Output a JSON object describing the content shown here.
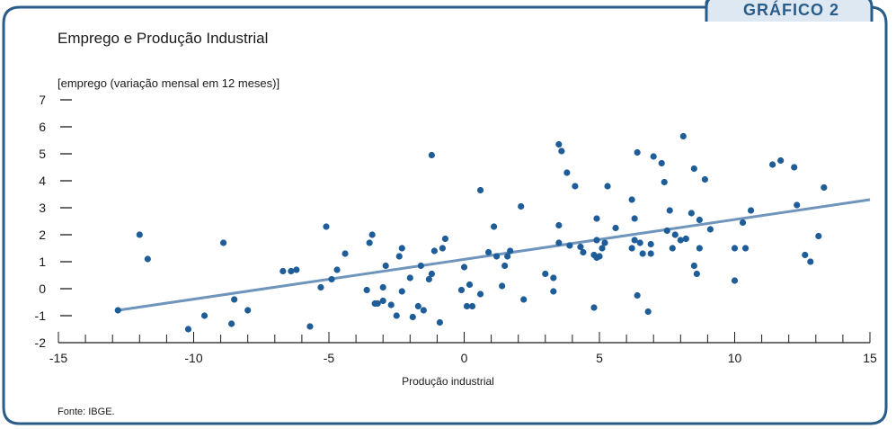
{
  "badge": "GRÁFICO 2",
  "title": "Emprego e Produção Industrial",
  "source": "Fonte: IBGE.",
  "colors": {
    "frame": "#2a5c8a",
    "points": "#1f5d99",
    "trend": "#6f95bd",
    "badge_bg": "#dde8f2"
  },
  "chart_data": {
    "type": "scatter",
    "title": "Emprego e Produção Industrial",
    "xlabel": "Produção industrial",
    "ylabel": "[emprego (variação mensal em 12 meses)]",
    "xlim": [
      -15,
      15
    ],
    "ylim": [
      -2,
      7
    ],
    "xticks": [
      -15,
      -10,
      -5,
      0,
      5,
      10,
      15
    ],
    "yticks": [
      -2,
      -1,
      0,
      1,
      2,
      3,
      4,
      5,
      6,
      7
    ],
    "grid": false,
    "legend": "none",
    "trendline": {
      "x": [
        -12.8,
        15
      ],
      "y": [
        -0.8,
        3.3
      ]
    },
    "points": [
      [
        -12.8,
        -0.8
      ],
      [
        -12.0,
        2.0
      ],
      [
        -11.7,
        1.1
      ],
      [
        -10.2,
        -1.5
      ],
      [
        -9.6,
        -1.0
      ],
      [
        -8.9,
        1.7
      ],
      [
        -8.6,
        -1.3
      ],
      [
        -8.5,
        -0.4
      ],
      [
        -8.0,
        -0.8
      ],
      [
        -6.7,
        0.65
      ],
      [
        -6.4,
        0.65
      ],
      [
        -6.2,
        0.7
      ],
      [
        -5.7,
        -1.4
      ],
      [
        -5.3,
        0.05
      ],
      [
        -5.1,
        2.3
      ],
      [
        -4.9,
        0.35
      ],
      [
        -4.7,
        0.7
      ],
      [
        -4.4,
        1.3
      ],
      [
        -3.6,
        -0.05
      ],
      [
        -3.5,
        1.7
      ],
      [
        -3.4,
        2.0
      ],
      [
        -3.3,
        -0.55
      ],
      [
        -3.2,
        -0.55
      ],
      [
        -3.0,
        -0.45
      ],
      [
        -3.0,
        0.05
      ],
      [
        -2.9,
        0.85
      ],
      [
        -2.7,
        -0.6
      ],
      [
        -2.5,
        -1.0
      ],
      [
        -2.4,
        1.2
      ],
      [
        -2.3,
        1.5
      ],
      [
        -2.3,
        -0.1
      ],
      [
        -2.0,
        0.4
      ],
      [
        -1.9,
        -1.05
      ],
      [
        -1.7,
        -0.65
      ],
      [
        -1.6,
        0.85
      ],
      [
        -1.5,
        -0.8
      ],
      [
        -1.3,
        0.35
      ],
      [
        -1.2,
        0.55
      ],
      [
        -1.2,
        4.95
      ],
      [
        -1.1,
        1.4
      ],
      [
        -0.9,
        -1.25
      ],
      [
        -0.8,
        1.5
      ],
      [
        -0.7,
        1.85
      ],
      [
        -0.1,
        -0.05
      ],
      [
        0.0,
        0.8
      ],
      [
        0.1,
        -0.65
      ],
      [
        0.2,
        0.15
      ],
      [
        0.3,
        -0.65
      ],
      [
        0.6,
        -0.2
      ],
      [
        0.6,
        3.65
      ],
      [
        0.9,
        1.35
      ],
      [
        1.1,
        2.3
      ],
      [
        1.2,
        1.2
      ],
      [
        1.4,
        0.1
      ],
      [
        1.5,
        0.85
      ],
      [
        1.6,
        1.2
      ],
      [
        1.7,
        1.4
      ],
      [
        2.2,
        -0.4
      ],
      [
        2.1,
        3.05
      ],
      [
        3.0,
        0.55
      ],
      [
        3.3,
        0.4
      ],
      [
        3.3,
        -0.1
      ],
      [
        3.5,
        2.35
      ],
      [
        3.5,
        1.7
      ],
      [
        3.5,
        5.35
      ],
      [
        3.6,
        5.1
      ],
      [
        3.8,
        4.3
      ],
      [
        3.9,
        1.6
      ],
      [
        4.1,
        3.8
      ],
      [
        4.3,
        1.55
      ],
      [
        4.4,
        1.35
      ],
      [
        4.8,
        1.25
      ],
      [
        4.8,
        -0.7
      ],
      [
        4.9,
        1.15
      ],
      [
        4.9,
        2.6
      ],
      [
        4.9,
        1.8
      ],
      [
        5.0,
        1.2
      ],
      [
        5.1,
        1.5
      ],
      [
        5.2,
        1.7
      ],
      [
        5.3,
        3.8
      ],
      [
        5.6,
        2.25
      ],
      [
        6.2,
        3.3
      ],
      [
        6.2,
        1.5
      ],
      [
        6.3,
        2.6
      ],
      [
        6.3,
        1.8
      ],
      [
        6.4,
        -0.25
      ],
      [
        6.4,
        5.05
      ],
      [
        6.5,
        1.7
      ],
      [
        6.6,
        1.3
      ],
      [
        6.8,
        -0.85
      ],
      [
        6.9,
        1.3
      ],
      [
        6.9,
        1.65
      ],
      [
        7.0,
        4.9
      ],
      [
        7.3,
        4.65
      ],
      [
        7.4,
        3.95
      ],
      [
        7.5,
        2.15
      ],
      [
        7.6,
        2.9
      ],
      [
        7.7,
        1.5
      ],
      [
        7.8,
        2.0
      ],
      [
        8.0,
        1.8
      ],
      [
        8.1,
        5.65
      ],
      [
        8.2,
        1.85
      ],
      [
        8.4,
        2.8
      ],
      [
        8.5,
        4.45
      ],
      [
        8.5,
        0.85
      ],
      [
        8.6,
        0.55
      ],
      [
        8.7,
        2.55
      ],
      [
        8.7,
        1.5
      ],
      [
        8.9,
        4.05
      ],
      [
        9.1,
        2.2
      ],
      [
        10.0,
        1.5
      ],
      [
        10.0,
        0.3
      ],
      [
        10.3,
        2.45
      ],
      [
        10.4,
        1.5
      ],
      [
        10.6,
        2.9
      ],
      [
        11.4,
        4.6
      ],
      [
        11.7,
        4.75
      ],
      [
        12.2,
        4.5
      ],
      [
        12.3,
        3.1
      ],
      [
        12.6,
        1.25
      ],
      [
        12.8,
        1.0
      ],
      [
        13.1,
        1.95
      ],
      [
        13.3,
        3.75
      ]
    ]
  }
}
